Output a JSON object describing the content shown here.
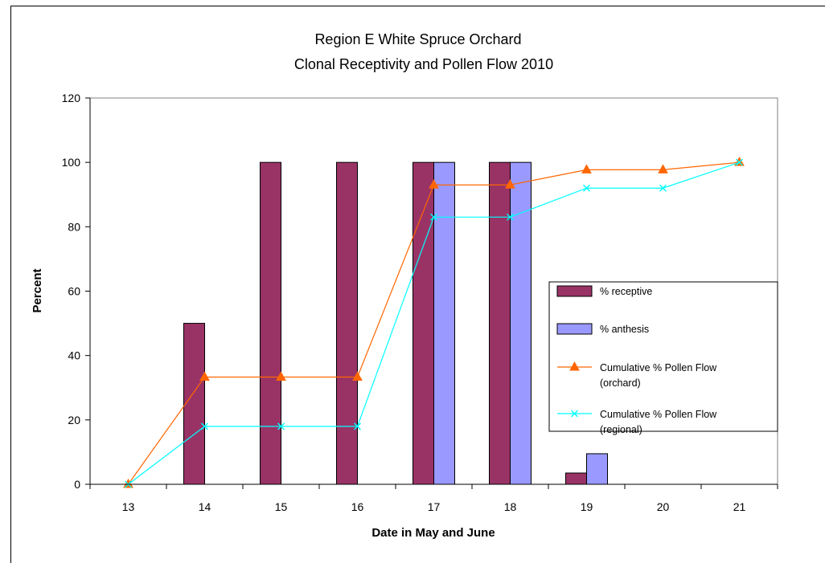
{
  "chart_data": {
    "type": "bar",
    "title": "Region E White Spruce Orchard",
    "subtitle": "Clonal Receptivity and Pollen Flow 2010",
    "xlabel": "Date in May and June",
    "ylabel": "Percent",
    "categories": [
      "13",
      "14",
      "15",
      "16",
      "17",
      "18",
      "19",
      "20",
      "21"
    ],
    "ylim": [
      0,
      120
    ],
    "yticks": [
      "0",
      "20",
      "40",
      "60",
      "80",
      "100",
      "120"
    ],
    "grid": false,
    "legend_position": "right",
    "series": [
      {
        "name": "% receptive",
        "kind": "bar",
        "color": "#993366",
        "values": [
          0,
          50,
          100,
          100,
          100,
          100,
          3.5,
          0,
          0
        ]
      },
      {
        "name": "% anthesis",
        "kind": "bar",
        "color": "#9999ff",
        "values": [
          0,
          0,
          0,
          0,
          100,
          100,
          9.5,
          0,
          0
        ]
      },
      {
        "name": "Cumulative % Pollen Flow (orchard)",
        "name_lines": [
          "Cumulative % Pollen Flow",
          "(orchard)"
        ],
        "kind": "line",
        "marker": "triangle",
        "color": "#ff6600",
        "values": [
          0,
          33.3,
          33.3,
          33.3,
          93,
          93,
          97.7,
          97.7,
          100
        ]
      },
      {
        "name": "Cumulative % Pollen Flow (regional)",
        "name_lines": [
          "Cumulative % Pollen Flow",
          "(regional)"
        ],
        "kind": "line",
        "marker": "x",
        "color": "#00ffff",
        "values": [
          0,
          18,
          18,
          18,
          83,
          83,
          92,
          92,
          100
        ]
      }
    ]
  }
}
